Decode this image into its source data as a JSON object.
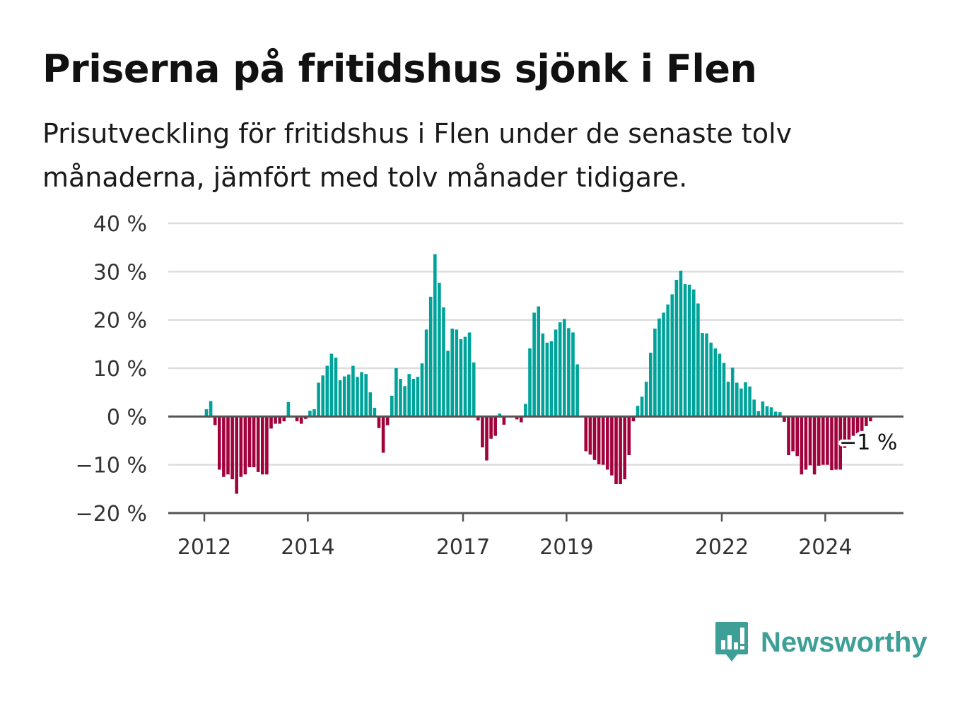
{
  "title": "Priserna på fritidshus sjönk i Flen",
  "subtitle": "Prisutveckling för fritidshus i Flen under de senaste tolv månaderna, jämfört med tolv månader tidigare.",
  "brand": "Newsworthy",
  "colors": {
    "positive": "#00a39a",
    "negative": "#a1023c",
    "grid": "#dddddd",
    "axis": "#555555",
    "brand": "#3e9f97"
  },
  "chart_data": {
    "type": "bar",
    "title": "Priserna på fritidshus sjönk i Flen",
    "subtitle": "Prisutveckling för fritidshus i Flen under de senaste tolv månaderna, jämfört med tolv månader tidigare.",
    "xlabel": "",
    "ylabel": "",
    "x_start": "2012-01",
    "frequency": "monthly",
    "ylim": [
      -20,
      40
    ],
    "yticks": [
      -20,
      -10,
      0,
      10,
      20,
      30,
      40
    ],
    "ytick_labels": [
      "−20 %",
      "−10 %",
      "0 %",
      "10 %",
      "20 %",
      "30 %",
      "40 %"
    ],
    "xtick_labels": [
      "2012",
      "2014",
      "2017",
      "2019",
      "2022",
      "2024"
    ],
    "grid": true,
    "annotation": "−1 %",
    "series": [
      {
        "values": [
          1.5,
          3.2,
          -1.8,
          -11,
          -12.5,
          -12,
          -13,
          -16,
          -12.5,
          -12,
          -10.5,
          -10.5,
          -11.5,
          -12,
          -12,
          -2.5,
          -1.5,
          -1.5,
          -1,
          3,
          0,
          -1,
          -1.5,
          -0.5,
          1.2,
          1.5,
          7,
          8.5,
          10.5,
          13,
          12.2,
          7.5,
          8.3,
          8.7,
          10.5,
          8.2,
          9.2,
          8.8,
          5,
          1.8,
          -2.4,
          -7.5,
          -1.8,
          4.3,
          10,
          7.8,
          6.3,
          8.8,
          7.8,
          8.2,
          11,
          18,
          24.8,
          33.6,
          27.7,
          22.6,
          13.6,
          18.2,
          18,
          16,
          16.5,
          17.4,
          11.2,
          -0.8,
          -6.4,
          -9.1,
          -4.6,
          -4,
          0.6,
          -1.7,
          0,
          0,
          -0.6,
          -1.2,
          2.6,
          14.1,
          21.5,
          22.8,
          17.2,
          15.3,
          15.6,
          18,
          19.5,
          20.2,
          18.3,
          17.4,
          10.8,
          0,
          -7.2,
          -7.9,
          -9,
          -9.9,
          -10,
          -11,
          -12.2,
          -14,
          -14,
          -13,
          -8,
          -1,
          2.2,
          4.1,
          7.2,
          13.2,
          18.2,
          20.3,
          21.5,
          23.2,
          25.3,
          28.3,
          30.2,
          27.4,
          27.3,
          26.3,
          23.4,
          17.3,
          17.2,
          15.3,
          14.1,
          13,
          11.1,
          7.2,
          10.1,
          7,
          5.8,
          7.1,
          6.2,
          3.5,
          1.1,
          3.1,
          2.1,
          1.9,
          1,
          0.9,
          -1.1,
          -8,
          -7.2,
          -8.2,
          -12,
          -11,
          -10.1,
          -12,
          -10.2,
          -10,
          -10,
          -11.1,
          -11,
          -11,
          -6.5,
          -5.1,
          -4,
          -3.5,
          -3,
          -2,
          -1
        ]
      }
    ]
  }
}
